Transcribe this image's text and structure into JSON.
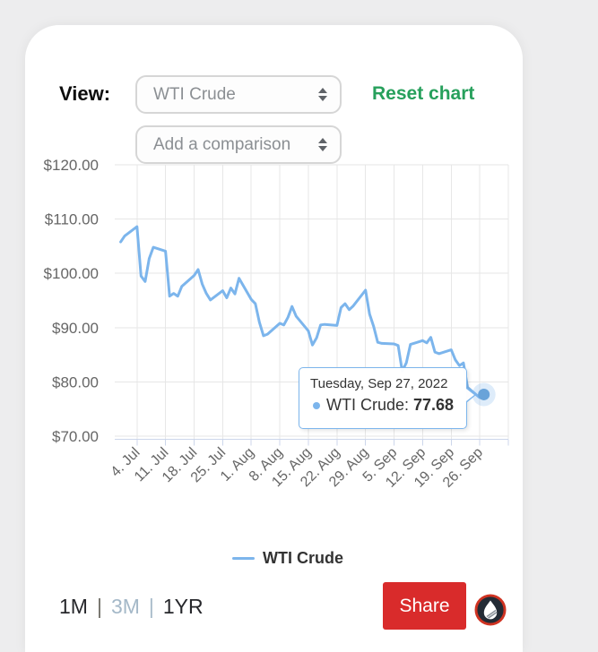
{
  "controls": {
    "view_label": "View:",
    "view_select": {
      "value": "WTI Crude"
    },
    "comparison_select": {
      "placeholder": "Add a comparison"
    },
    "reset_label": "Reset chart",
    "reset_color": "#27a05c"
  },
  "chart_data": {
    "type": "line",
    "x_range": [
      "2022-06-29",
      "2022-10-03"
    ],
    "ylim": [
      70,
      120
    ],
    "grid": true,
    "legend_position": "bottom-center",
    "yticks": [
      {
        "value": 120,
        "label": "$120.00"
      },
      {
        "value": 110,
        "label": "$110.00"
      },
      {
        "value": 100,
        "label": "$100.00"
      },
      {
        "value": 90,
        "label": "$90.00"
      },
      {
        "value": 80,
        "label": "$80.00"
      },
      {
        "value": 70,
        "label": "$70.00"
      }
    ],
    "xticks": [
      {
        "date": "2022-07-04",
        "label": "4. Jul"
      },
      {
        "date": "2022-07-11",
        "label": "11. Jul"
      },
      {
        "date": "2022-07-18",
        "label": "18. Jul"
      },
      {
        "date": "2022-07-25",
        "label": "25. Jul"
      },
      {
        "date": "2022-08-01",
        "label": "1. Aug"
      },
      {
        "date": "2022-08-08",
        "label": "8. Aug"
      },
      {
        "date": "2022-08-15",
        "label": "15. Aug"
      },
      {
        "date": "2022-08-22",
        "label": "22. Aug"
      },
      {
        "date": "2022-08-29",
        "label": "29. Aug"
      },
      {
        "date": "2022-09-05",
        "label": "5. Sep"
      },
      {
        "date": "2022-09-12",
        "label": "12. Sep"
      },
      {
        "date": "2022-09-19",
        "label": "19. Sep"
      },
      {
        "date": "2022-09-26",
        "label": "26. Sep"
      },
      {
        "date": "2022-10-03",
        "label": ""
      }
    ],
    "series": [
      {
        "name": "WTI Crude",
        "color": "#7cb5ec",
        "points": [
          [
            "2022-06-30",
            105.8
          ],
          [
            "2022-07-01",
            106.9
          ],
          [
            "2022-07-04",
            108.6
          ],
          [
            "2022-07-05",
            99.5
          ],
          [
            "2022-07-06",
            98.5
          ],
          [
            "2022-07-07",
            102.7
          ],
          [
            "2022-07-08",
            104.8
          ],
          [
            "2022-07-11",
            104.1
          ],
          [
            "2022-07-12",
            95.8
          ],
          [
            "2022-07-13",
            96.3
          ],
          [
            "2022-07-14",
            95.8
          ],
          [
            "2022-07-15",
            97.6
          ],
          [
            "2022-07-18",
            99.6
          ],
          [
            "2022-07-19",
            100.7
          ],
          [
            "2022-07-20",
            98.0
          ],
          [
            "2022-07-21",
            96.3
          ],
          [
            "2022-07-22",
            95.1
          ],
          [
            "2022-07-25",
            96.8
          ],
          [
            "2022-07-26",
            95.5
          ],
          [
            "2022-07-27",
            97.3
          ],
          [
            "2022-07-28",
            96.2
          ],
          [
            "2022-07-29",
            99.1
          ],
          [
            "2022-08-01",
            95.2
          ],
          [
            "2022-08-02",
            94.4
          ],
          [
            "2022-08-03",
            91.0
          ],
          [
            "2022-08-04",
            88.5
          ],
          [
            "2022-08-05",
            88.8
          ],
          [
            "2022-08-08",
            90.8
          ],
          [
            "2022-08-09",
            90.5
          ],
          [
            "2022-08-10",
            91.9
          ],
          [
            "2022-08-11",
            93.9
          ],
          [
            "2022-08-12",
            92.1
          ],
          [
            "2022-08-15",
            89.4
          ],
          [
            "2022-08-16",
            86.8
          ],
          [
            "2022-08-17",
            88.1
          ],
          [
            "2022-08-18",
            90.5
          ],
          [
            "2022-08-19",
            90.6
          ],
          [
            "2022-08-22",
            90.4
          ],
          [
            "2022-08-23",
            93.7
          ],
          [
            "2022-08-24",
            94.4
          ],
          [
            "2022-08-25",
            93.3
          ],
          [
            "2022-08-26",
            94.0
          ],
          [
            "2022-08-29",
            96.9
          ],
          [
            "2022-08-30",
            92.5
          ],
          [
            "2022-08-31",
            90.2
          ],
          [
            "2022-09-01",
            87.3
          ],
          [
            "2022-09-02",
            87.1
          ],
          [
            "2022-09-05",
            87.0
          ],
          [
            "2022-09-06",
            86.7
          ],
          [
            "2022-09-07",
            82.0
          ],
          [
            "2022-09-08",
            83.5
          ],
          [
            "2022-09-09",
            86.9
          ],
          [
            "2022-09-12",
            87.6
          ],
          [
            "2022-09-13",
            87.2
          ],
          [
            "2022-09-14",
            88.2
          ],
          [
            "2022-09-15",
            85.5
          ],
          [
            "2022-09-16",
            85.2
          ],
          [
            "2022-09-19",
            85.9
          ],
          [
            "2022-09-20",
            84.1
          ],
          [
            "2022-09-21",
            83.0
          ],
          [
            "2022-09-22",
            83.5
          ],
          [
            "2022-09-23",
            79.0
          ],
          [
            "2022-09-26",
            77.1
          ],
          [
            "2022-09-27",
            77.68
          ]
        ]
      }
    ]
  },
  "tooltip": {
    "date_line": "Tuesday, Sep 27, 2022",
    "series_label": "WTI Crude:",
    "value": "77.68",
    "point_date": "2022-09-27"
  },
  "legend": {
    "label": "WTI Crude"
  },
  "range_selector": {
    "separator": "|",
    "options": [
      {
        "label": "1M",
        "active": false
      },
      {
        "label": "3M",
        "active": true
      },
      {
        "label": "1YR",
        "active": false
      }
    ]
  },
  "share_button": {
    "label": "Share",
    "color": "#d92b2b"
  },
  "logo_name": "oilprice-logo"
}
